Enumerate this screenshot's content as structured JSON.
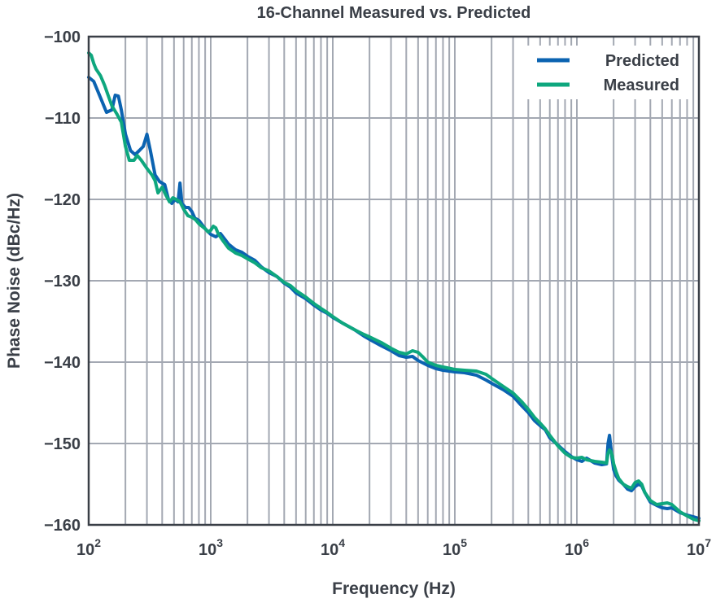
{
  "chart_data": {
    "type": "line",
    "title": "16-Channel Measured vs. Predicted",
    "xlabel": "Frequency (Hz)",
    "ylabel": "Phase Noise (dBc/Hz)",
    "x_scale": "log",
    "xlim": [
      100,
      10000000
    ],
    "ylim": [
      -160,
      -100
    ],
    "x_ticks": [
      {
        "value": 100,
        "base": "10",
        "exp": "2"
      },
      {
        "value": 1000,
        "base": "10",
        "exp": "3"
      },
      {
        "value": 10000,
        "base": "10",
        "exp": "4"
      },
      {
        "value": 100000,
        "base": "10",
        "exp": "5"
      },
      {
        "value": 1000000,
        "base": "10",
        "exp": "6"
      },
      {
        "value": 10000000,
        "base": "10",
        "exp": "7"
      }
    ],
    "y_ticks": [
      {
        "value": -100,
        "label": "−100"
      },
      {
        "value": -110,
        "label": "−110"
      },
      {
        "value": -120,
        "label": "−120"
      },
      {
        "value": -130,
        "label": "−130"
      },
      {
        "value": -140,
        "label": "−140"
      },
      {
        "value": -150,
        "label": "−150"
      },
      {
        "value": -160,
        "label": "−160"
      }
    ],
    "grid": true,
    "legend_position": "top-right",
    "series": [
      {
        "name": "Predicted",
        "color": "#0b63b1",
        "points": [
          [
            100,
            -105
          ],
          [
            110,
            -105.5
          ],
          [
            125,
            -107.5
          ],
          [
            140,
            -109.3
          ],
          [
            155,
            -109
          ],
          [
            165,
            -107.2
          ],
          [
            175,
            -107.3
          ],
          [
            185,
            -109
          ],
          [
            200,
            -112
          ],
          [
            220,
            -114
          ],
          [
            240,
            -114.5
          ],
          [
            260,
            -114
          ],
          [
            280,
            -113.5
          ],
          [
            300,
            -112
          ],
          [
            320,
            -114
          ],
          [
            350,
            -117
          ],
          [
            380,
            -117.8
          ],
          [
            420,
            -118.2
          ],
          [
            450,
            -120
          ],
          [
            480,
            -120.5
          ],
          [
            510,
            -120
          ],
          [
            540,
            -120.3
          ],
          [
            560,
            -118
          ],
          [
            580,
            -120.5
          ],
          [
            620,
            -121
          ],
          [
            660,
            -121
          ],
          [
            700,
            -121.5
          ],
          [
            740,
            -122.3
          ],
          [
            800,
            -122.6
          ],
          [
            900,
            -123.6
          ],
          [
            1000,
            -124.3
          ],
          [
            1100,
            -124.6
          ],
          [
            1200,
            -124.2
          ],
          [
            1400,
            -125.5
          ],
          [
            1600,
            -126.2
          ],
          [
            1800,
            -126.5
          ],
          [
            2000,
            -127
          ],
          [
            2300,
            -127.5
          ],
          [
            2600,
            -128.3
          ],
          [
            3000,
            -129
          ],
          [
            3500,
            -129.5
          ],
          [
            4000,
            -130.3
          ],
          [
            4500,
            -130.8
          ],
          [
            5000,
            -131.5
          ],
          [
            6000,
            -132.2
          ],
          [
            7000,
            -133
          ],
          [
            8000,
            -133.6
          ],
          [
            9000,
            -134
          ],
          [
            10000,
            -134.5
          ],
          [
            12000,
            -135.2
          ],
          [
            15000,
            -136
          ],
          [
            18000,
            -136.8
          ],
          [
            20000,
            -137.2
          ],
          [
            25000,
            -138
          ],
          [
            30000,
            -138.6
          ],
          [
            35000,
            -139.2
          ],
          [
            40000,
            -139.4
          ],
          [
            45000,
            -139.3
          ],
          [
            50000,
            -139.8
          ],
          [
            60000,
            -140.4
          ],
          [
            70000,
            -140.8
          ],
          [
            80000,
            -141
          ],
          [
            100000,
            -141.2
          ],
          [
            120000,
            -141.3
          ],
          [
            150000,
            -141.6
          ],
          [
            180000,
            -142.2
          ],
          [
            200000,
            -142.6
          ],
          [
            250000,
            -143.4
          ],
          [
            300000,
            -144.2
          ],
          [
            350000,
            -145.3
          ],
          [
            400000,
            -146.2
          ],
          [
            450000,
            -147.2
          ],
          [
            500000,
            -147.8
          ],
          [
            550000,
            -148.3
          ],
          [
            600000,
            -149.3
          ],
          [
            700000,
            -150.2
          ],
          [
            800000,
            -151
          ],
          [
            900000,
            -151.6
          ],
          [
            1000000,
            -152
          ],
          [
            1100000,
            -152.2
          ],
          [
            1200000,
            -151.8
          ],
          [
            1400000,
            -152.4
          ],
          [
            1600000,
            -152.6
          ],
          [
            1750000,
            -152.5
          ],
          [
            1800000,
            -150
          ],
          [
            1850000,
            -149
          ],
          [
            1900000,
            -150.5
          ],
          [
            1950000,
            -152
          ],
          [
            2000000,
            -153.2
          ],
          [
            2100000,
            -154
          ],
          [
            2200000,
            -154.5
          ],
          [
            2400000,
            -155
          ],
          [
            2600000,
            -155.6
          ],
          [
            2800000,
            -155.8
          ],
          [
            3000000,
            -155.3
          ],
          [
            3200000,
            -155
          ],
          [
            3400000,
            -155.2
          ],
          [
            3600000,
            -156
          ],
          [
            4000000,
            -157.2
          ],
          [
            4500000,
            -157.6
          ],
          [
            5000000,
            -157.9
          ],
          [
            5500000,
            -158
          ],
          [
            6000000,
            -157.9
          ],
          [
            7000000,
            -158.5
          ],
          [
            8000000,
            -158.8
          ],
          [
            9000000,
            -159
          ],
          [
            10000000,
            -159.2
          ]
        ]
      },
      {
        "name": "Measured",
        "color": "#0ea77e",
        "points": [
          [
            100,
            -102
          ],
          [
            105,
            -102.3
          ],
          [
            110,
            -103.3
          ],
          [
            115,
            -104
          ],
          [
            125,
            -104.8
          ],
          [
            135,
            -106
          ],
          [
            145,
            -107.3
          ],
          [
            155,
            -108.5
          ],
          [
            170,
            -109.5
          ],
          [
            185,
            -110.5
          ],
          [
            200,
            -113.5
          ],
          [
            215,
            -115.2
          ],
          [
            235,
            -115.2
          ],
          [
            250,
            -114.6
          ],
          [
            270,
            -115.2
          ],
          [
            300,
            -116.2
          ],
          [
            330,
            -117
          ],
          [
            350,
            -117.7
          ],
          [
            370,
            -119.2
          ],
          [
            400,
            -118.5
          ],
          [
            430,
            -119.5
          ],
          [
            460,
            -120.3
          ],
          [
            490,
            -119.8
          ],
          [
            520,
            -120
          ],
          [
            560,
            -120.3
          ],
          [
            600,
            -121.2
          ],
          [
            650,
            -122
          ],
          [
            700,
            -122.2
          ],
          [
            750,
            -122.5
          ],
          [
            800,
            -123
          ],
          [
            900,
            -123.6
          ],
          [
            950,
            -124
          ],
          [
            1000,
            -123.8
          ],
          [
            1050,
            -123.3
          ],
          [
            1100,
            -123.5
          ],
          [
            1150,
            -124.2
          ],
          [
            1250,
            -125
          ],
          [
            1400,
            -126
          ],
          [
            1600,
            -126.6
          ],
          [
            1800,
            -126.9
          ],
          [
            2000,
            -127.3
          ],
          [
            2300,
            -127.8
          ],
          [
            2600,
            -128.4
          ],
          [
            3000,
            -128.8
          ],
          [
            3500,
            -129.5
          ],
          [
            4000,
            -130.2
          ],
          [
            4500,
            -130.6
          ],
          [
            5000,
            -131.2
          ],
          [
            6000,
            -132
          ],
          [
            7000,
            -132.8
          ],
          [
            8000,
            -133.4
          ],
          [
            9000,
            -133.9
          ],
          [
            10000,
            -134.4
          ],
          [
            12000,
            -135.2
          ],
          [
            15000,
            -136
          ],
          [
            18000,
            -136.6
          ],
          [
            20000,
            -136.9
          ],
          [
            25000,
            -137.6
          ],
          [
            30000,
            -138.3
          ],
          [
            35000,
            -138.8
          ],
          [
            40000,
            -139
          ],
          [
            45000,
            -138.6
          ],
          [
            50000,
            -138.8
          ],
          [
            55000,
            -139.4
          ],
          [
            60000,
            -140
          ],
          [
            70000,
            -140.4
          ],
          [
            80000,
            -140.6
          ],
          [
            100000,
            -140.9
          ],
          [
            120000,
            -141
          ],
          [
            150000,
            -141.1
          ],
          [
            180000,
            -141.5
          ],
          [
            200000,
            -142
          ],
          [
            250000,
            -143
          ],
          [
            300000,
            -143.8
          ],
          [
            350000,
            -144.8
          ],
          [
            400000,
            -145.8
          ],
          [
            450000,
            -146.8
          ],
          [
            500000,
            -147.5
          ],
          [
            550000,
            -148.2
          ],
          [
            600000,
            -149
          ],
          [
            700000,
            -150.3
          ],
          [
            800000,
            -151.2
          ],
          [
            900000,
            -151.7
          ],
          [
            1000000,
            -151.8
          ],
          [
            1100000,
            -151.7
          ],
          [
            1200000,
            -152
          ],
          [
            1400000,
            -152.2
          ],
          [
            1600000,
            -152.3
          ],
          [
            1750000,
            -152.4
          ],
          [
            1800000,
            -151.2
          ],
          [
            1850000,
            -150.8
          ],
          [
            1900000,
            -151
          ],
          [
            1950000,
            -151.5
          ],
          [
            2000000,
            -152.5
          ],
          [
            2100000,
            -153.5
          ],
          [
            2200000,
            -154.3
          ],
          [
            2400000,
            -155
          ],
          [
            2600000,
            -155.3
          ],
          [
            2800000,
            -155.5
          ],
          [
            3000000,
            -154.8
          ],
          [
            3200000,
            -154.6
          ],
          [
            3400000,
            -155
          ],
          [
            3600000,
            -156
          ],
          [
            4000000,
            -157
          ],
          [
            4500000,
            -157.5
          ],
          [
            5000000,
            -157.4
          ],
          [
            5500000,
            -157.3
          ],
          [
            6000000,
            -157.5
          ],
          [
            7000000,
            -158.4
          ],
          [
            8000000,
            -158.9
          ],
          [
            9000000,
            -159.3
          ],
          [
            10000000,
            -159.5
          ]
        ]
      }
    ]
  },
  "colors": {
    "text": "#3a3f47",
    "grid": "#a3a8b2",
    "frame": "#3a3f47"
  }
}
